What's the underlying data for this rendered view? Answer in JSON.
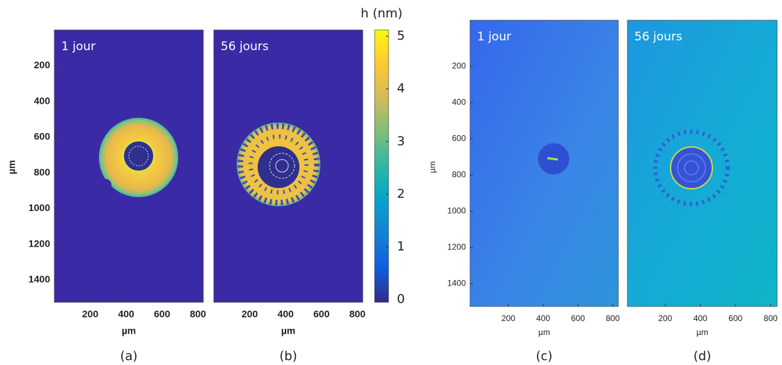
{
  "chart_data": [
    {
      "type": "image",
      "label": "1 jour",
      "caption": "(a)",
      "xlabel": "µm",
      "ylabel": "µm",
      "xlim": [
        0,
        830
      ],
      "ylim": [
        1525,
        0
      ],
      "xticks": [
        200,
        400,
        600,
        800
      ],
      "yticks": [
        200,
        400,
        600,
        800,
        1000,
        1200,
        1400
      ]
    },
    {
      "type": "image",
      "label": "56 jours",
      "caption": "(b)",
      "xlabel": "µm",
      "xlim": [
        0,
        830
      ],
      "ylim": [
        1525,
        0
      ],
      "xticks": [
        200,
        400,
        600,
        800
      ]
    },
    {
      "type": "colorbar",
      "title": "h (nm)",
      "ylim": [
        -0.05,
        5.12
      ],
      "yticks": [
        0,
        1,
        2,
        3,
        4,
        5
      ]
    },
    {
      "type": "image",
      "label": "1 jour",
      "caption": "(c)",
      "xlabel": "µm",
      "ylabel": "µm",
      "xlim": [
        -20,
        832
      ],
      "ylim": [
        1525,
        -55
      ],
      "xticks": [
        200,
        400,
        600,
        800
      ],
      "yticks": [
        200,
        400,
        600,
        800,
        1000,
        1200,
        1400
      ]
    },
    {
      "type": "image",
      "label": "56 jours",
      "caption": "(d)",
      "xlabel": "µm",
      "xlim": [
        -15,
        837
      ],
      "ylim": [
        1525,
        -55
      ],
      "xticks": [
        200,
        400,
        600,
        800
      ]
    }
  ]
}
